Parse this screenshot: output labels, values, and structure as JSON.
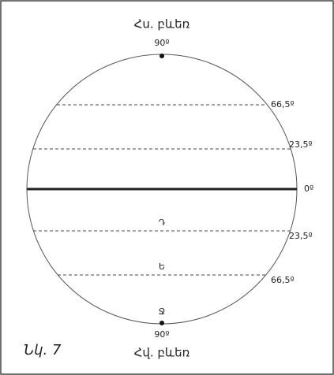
{
  "diagram": {
    "north_pole": "Հս. բևեռ",
    "south_pole": "Հվ. բևեռ",
    "caption": "Նկ. 7",
    "top_label": "90º",
    "bottom_label": "90º",
    "latitudes": [
      "66,5º",
      "23,5º",
      "0º",
      "23,5º",
      "66,5º"
    ],
    "zone_letters": [
      "Դ",
      "Ե",
      "Ջ"
    ]
  }
}
